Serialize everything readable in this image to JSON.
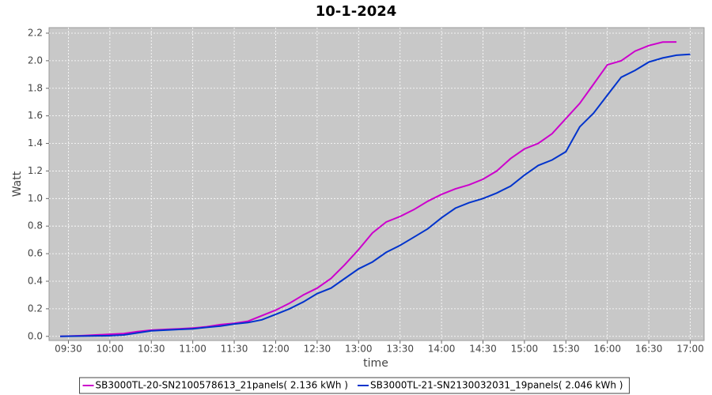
{
  "chart_data": {
    "type": "line",
    "title": "10-1-2024",
    "x_label": "time",
    "y_label": "Watt",
    "xlim": [
      "09:16",
      "17:10"
    ],
    "xticks": [
      "09:30",
      "10:00",
      "10:30",
      "11:00",
      "11:30",
      "12:00",
      "12:30",
      "13:00",
      "13:30",
      "14:00",
      "14:30",
      "15:00",
      "15:30",
      "16:00",
      "16:30",
      "17:00"
    ],
    "ylim": [
      -0.03,
      2.24
    ],
    "yticks": [
      0.0,
      0.2,
      0.4,
      0.6,
      0.8,
      1.0,
      1.2,
      1.4,
      1.6,
      1.8,
      2.0,
      2.2
    ],
    "yticks_labels": [
      "0.0",
      "0.2",
      "0.4",
      "0.6",
      "0.8",
      "1.0",
      "1.2",
      "1.4",
      "1.6",
      "1.8",
      "2.0",
      "2.2"
    ],
    "grid": true,
    "legend": "bottom",
    "series": [
      {
        "name": "SB3000TL-20-SN2100578613_21panels( 2.136 kWh )",
        "color": "#cc00cc",
        "x": [
          "09:24",
          "09:40",
          "10:00",
          "10:10",
          "10:20",
          "10:30",
          "10:40",
          "10:50",
          "11:00",
          "11:10",
          "11:20",
          "11:30",
          "11:40",
          "11:50",
          "12:00",
          "12:10",
          "12:20",
          "12:30",
          "12:40",
          "12:50",
          "13:00",
          "13:10",
          "13:20",
          "13:30",
          "13:40",
          "13:50",
          "14:00",
          "14:10",
          "14:20",
          "14:30",
          "14:40",
          "14:50",
          "15:00",
          "15:10",
          "15:20",
          "15:30",
          "15:40",
          "15:50",
          "16:00",
          "16:10",
          "16:20",
          "16:30",
          "16:40",
          "16:50"
        ],
        "values": [
          0.0,
          0.005,
          0.015,
          0.02,
          0.035,
          0.045,
          0.05,
          0.055,
          0.06,
          0.07,
          0.085,
          0.095,
          0.11,
          0.15,
          0.19,
          0.24,
          0.3,
          0.35,
          0.42,
          0.52,
          0.63,
          0.75,
          0.83,
          0.87,
          0.92,
          0.98,
          1.03,
          1.07,
          1.1,
          1.14,
          1.2,
          1.29,
          1.36,
          1.4,
          1.47,
          1.58,
          1.69,
          1.83,
          1.97,
          2.0,
          2.07,
          2.11,
          2.135,
          2.136
        ]
      },
      {
        "name": "SB3000TL-21-SN2130032031_19panels( 2.046 kWh )",
        "color": "#0033cc",
        "x": [
          "09:24",
          "10:00",
          "10:10",
          "10:20",
          "10:30",
          "10:40",
          "10:50",
          "11:00",
          "11:10",
          "11:20",
          "11:30",
          "11:40",
          "11:50",
          "12:00",
          "12:10",
          "12:20",
          "12:30",
          "12:40",
          "12:50",
          "13:00",
          "13:10",
          "13:20",
          "13:30",
          "13:40",
          "13:50",
          "14:00",
          "14:10",
          "14:20",
          "14:30",
          "14:40",
          "14:50",
          "15:00",
          "15:10",
          "15:20",
          "15:30",
          "15:40",
          "15:50",
          "16:00",
          "16:10",
          "16:20",
          "16:30",
          "16:40",
          "16:50",
          "17:00"
        ],
        "values": [
          0.0,
          0.005,
          0.01,
          0.025,
          0.04,
          0.045,
          0.05,
          0.055,
          0.065,
          0.075,
          0.09,
          0.1,
          0.12,
          0.16,
          0.2,
          0.25,
          0.31,
          0.35,
          0.42,
          0.49,
          0.54,
          0.61,
          0.66,
          0.72,
          0.78,
          0.86,
          0.93,
          0.97,
          1.0,
          1.04,
          1.09,
          1.17,
          1.24,
          1.28,
          1.34,
          1.52,
          1.62,
          1.75,
          1.88,
          1.93,
          1.99,
          2.02,
          2.04,
          2.046
        ]
      }
    ]
  }
}
